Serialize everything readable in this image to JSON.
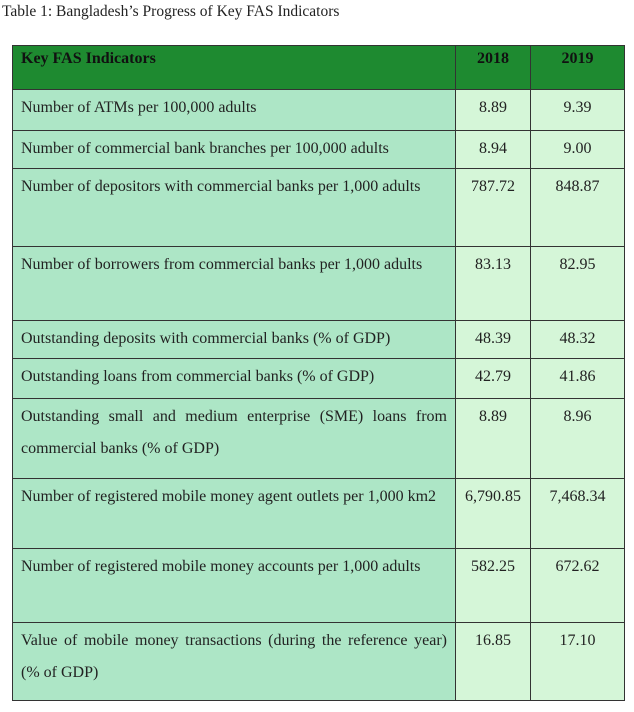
{
  "caption": "Table 1: Bangladesh’s Progress of Key FAS Indicators",
  "header": {
    "indicator": "Key FAS Indicators",
    "y2018": "2018",
    "y2019": "2019"
  },
  "rows": [
    {
      "indicator": "Number of ATMs per 100,000 adults",
      "y2018": "8.89",
      "y2019": "9.39"
    },
    {
      "indicator": "Number of commercial bank branches per 100,000 adults",
      "y2018": "8.94",
      "y2019": "9.00"
    },
    {
      "indicator": "Number of depositors with commercial banks per 1,000 adults",
      "y2018": "787.72",
      "y2019": "848.87"
    },
    {
      "indicator": "Number of borrowers from commercial banks per 1,000 adults",
      "y2018": "83.13",
      "y2019": "82.95"
    },
    {
      "indicator": "Outstanding deposits with commercial banks (% of GDP)",
      "y2018": "48.39",
      "y2019": "48.32"
    },
    {
      "indicator": "Outstanding loans from commercial banks (% of GDP)",
      "y2018": "42.79",
      "y2019": "41.86"
    },
    {
      "indicator": "Outstanding small and medium enterprise (SME) loans from commercial banks (% of GDP)",
      "y2018": "8.89",
      "y2019": "8.96"
    }
  ],
  "mobile_rows": [
    {
      "indicator": "Number of registered mobile money agent outlets per 1,000 km2",
      "y2018": "6,790.85",
      "y2019": "7,468.34"
    },
    {
      "indicator": "Number of registered mobile money accounts per 1,000 adults",
      "y2018": "582.25",
      "y2019": "672.62"
    },
    {
      "indicator": "Value of mobile money transactions (during the reference year) (% of GDP)",
      "y2018": "16.85",
      "y2019": "17.10"
    }
  ],
  "colors": {
    "header": "#1e8a30",
    "indicator_cell": "#ade6c6",
    "value_cell": "#d5f6d8"
  }
}
